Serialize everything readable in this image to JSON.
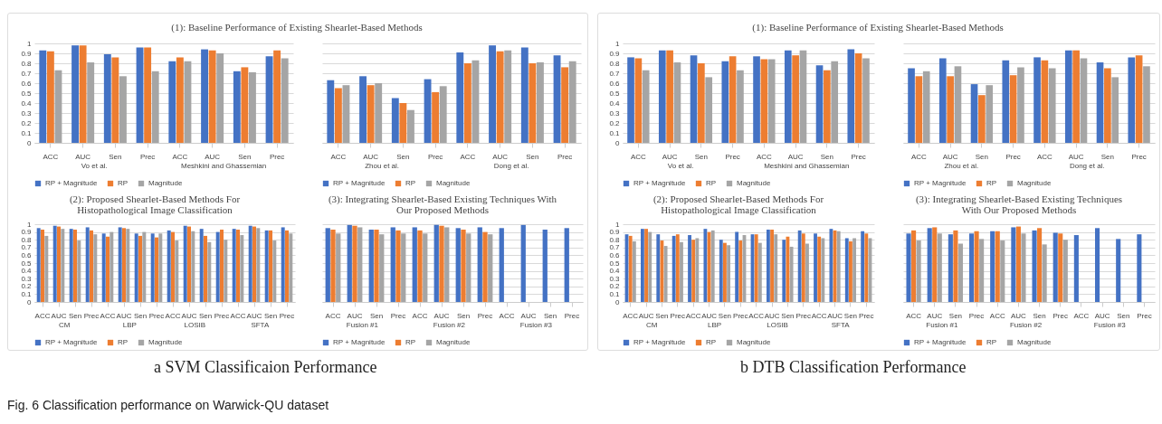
{
  "chart_data": [
    {
      "type": "bar",
      "title": "(1): Baseline Performance of Existing Shearlet-Based Methods",
      "categories": [
        "ACC",
        "AUC",
        "Sen",
        "Prec",
        "ACC",
        "AUC",
        "Sen",
        "Prec"
      ],
      "annotations": [
        "Vo et al.",
        "Meshkini and Ghassemian"
      ],
      "ylim": [
        0,
        1
      ],
      "yticks": [
        0,
        0.1,
        0.2,
        0.3,
        0.4,
        0.5,
        0.6,
        0.7,
        0.8,
        0.9,
        1
      ],
      "grid": "y",
      "legend": "bottom",
      "series": [
        {
          "name": "RP + Magnitude",
          "color": "#4472c4",
          "values": [
            0.93,
            0.98,
            0.89,
            0.96,
            0.82,
            0.94,
            0.72,
            0.87
          ]
        },
        {
          "name": "RP",
          "color": "#ed7d31",
          "values": [
            0.92,
            0.98,
            0.86,
            0.96,
            0.86,
            0.93,
            0.76,
            0.93
          ]
        },
        {
          "name": "Magnitude",
          "color": "#a5a5a5",
          "values": [
            0.73,
            0.81,
            0.67,
            0.72,
            0.82,
            0.9,
            0.71,
            0.85
          ]
        }
      ]
    },
    {
      "type": "bar",
      "categories": [
        "ACC",
        "AUC",
        "Sen",
        "Prec",
        "ACC",
        "AUC",
        "Sen",
        "Prec"
      ],
      "annotations": [
        "Zhou et al.",
        "Dong et al."
      ],
      "ylim": [
        0,
        1
      ],
      "yticks": [
        0,
        0.1,
        0.2,
        0.3,
        0.4,
        0.5,
        0.6,
        0.7,
        0.8,
        0.9,
        1
      ],
      "grid": "y",
      "legend": "bottom",
      "tick_labels": "x",
      "series": [
        {
          "name": "RP + Magnitude",
          "color": "#4472c4",
          "values": [
            0.63,
            0.67,
            0.45,
            0.64,
            0.91,
            0.98,
            0.96,
            0.88
          ]
        },
        {
          "name": "RP",
          "color": "#ed7d31",
          "values": [
            0.55,
            0.58,
            0.4,
            0.51,
            0.8,
            0.92,
            0.8,
            0.76
          ]
        },
        {
          "name": "Magnitude",
          "color": "#a5a5a5",
          "values": [
            0.58,
            0.6,
            0.33,
            0.57,
            0.83,
            0.93,
            0.81,
            0.82
          ]
        }
      ]
    },
    {
      "type": "bar",
      "title": "(2): Proposed Shearlet-Based Methods For Histopathological Image Classification",
      "categories": [
        "ACC",
        "AUC",
        "Sen",
        "Prec",
        "ACC",
        "AUC",
        "Sen",
        "Prec",
        "ACC",
        "AUC",
        "Sen",
        "Prec",
        "ACC",
        "AUC",
        "Sen",
        "Prec"
      ],
      "annotations": [
        "CM",
        "LBP",
        "LOSIB",
        "SFTA"
      ],
      "ylim": [
        0,
        1
      ],
      "yticks": [
        0,
        0.1,
        0.2,
        0.3,
        0.4,
        0.5,
        0.6,
        0.7,
        0.8,
        0.9,
        1
      ],
      "grid": "y",
      "legend": "bottom",
      "series": [
        {
          "name": "RP + Magnitude",
          "color": "#4472c4",
          "values": [
            0.95,
            0.98,
            0.94,
            0.96,
            0.88,
            0.96,
            0.88,
            0.88,
            0.92,
            0.98,
            0.94,
            0.9,
            0.94,
            0.98,
            0.92,
            0.96
          ]
        },
        {
          "name": "RP",
          "color": "#ed7d31",
          "values": [
            0.93,
            0.97,
            0.93,
            0.92,
            0.84,
            0.95,
            0.85,
            0.83,
            0.9,
            0.97,
            0.85,
            0.93,
            0.93,
            0.97,
            0.92,
            0.92
          ]
        },
        {
          "name": "Magnitude",
          "color": "#a5a5a5",
          "values": [
            0.85,
            0.94,
            0.79,
            0.87,
            0.9,
            0.94,
            0.9,
            0.88,
            0.79,
            0.91,
            0.77,
            0.8,
            0.86,
            0.95,
            0.79,
            0.88
          ]
        }
      ]
    },
    {
      "type": "bar",
      "title": "(3): Integrating Shearlet-Based Existing Techniques With Our Proposed Methods",
      "categories": [
        "ACC",
        "AUC",
        "Sen",
        "Prec",
        "ACC",
        "AUC",
        "Sen",
        "Prec",
        "ACC",
        "AUC",
        "Sen",
        "Prec"
      ],
      "annotations": [
        "Fusion #1",
        "Fusion #2",
        "Fusion #3"
      ],
      "ylim": [
        0,
        1
      ],
      "yticks": [
        0,
        0.1,
        0.2,
        0.3,
        0.4,
        0.5,
        0.6,
        0.7,
        0.8,
        0.9,
        1
      ],
      "grid": "y",
      "legend": "bottom",
      "tick_labels": "x",
      "series": [
        {
          "name": "RP + Magnitude",
          "color": "#4472c4",
          "values": [
            0.95,
            0.99,
            0.93,
            0.96,
            0.96,
            0.99,
            0.95,
            0.96,
            0.95,
            0.99,
            0.93,
            0.95
          ]
        },
        {
          "name": "RP",
          "color": "#ed7d31",
          "values": [
            0.93,
            0.98,
            0.93,
            0.92,
            0.92,
            0.98,
            0.93,
            0.9,
            null,
            null,
            null,
            null
          ]
        },
        {
          "name": "Magnitude",
          "color": "#a5a5a5",
          "values": [
            0.88,
            0.96,
            0.87,
            0.88,
            0.88,
            0.96,
            0.88,
            0.87,
            null,
            null,
            null,
            null
          ]
        }
      ]
    },
    {
      "type": "bar",
      "title": "(1): Baseline Performance of Existing Shearlet-Based Methods",
      "categories": [
        "ACC",
        "AUC",
        "Sen",
        "Prec",
        "ACC",
        "AUC",
        "Sen",
        "Prec"
      ],
      "annotations": [
        "Vo et al.",
        "Meshkini and Ghassemian"
      ],
      "ylim": [
        0,
        1
      ],
      "yticks": [
        0,
        0.1,
        0.2,
        0.3,
        0.4,
        0.5,
        0.6,
        0.7,
        0.8,
        0.9,
        1
      ],
      "grid": "y",
      "legend": "bottom",
      "series": [
        {
          "name": "RP + Magnitude",
          "color": "#4472c4",
          "values": [
            0.86,
            0.93,
            0.88,
            0.82,
            0.87,
            0.93,
            0.78,
            0.94
          ]
        },
        {
          "name": "RP",
          "color": "#ed7d31",
          "values": [
            0.85,
            0.93,
            0.8,
            0.87,
            0.84,
            0.88,
            0.73,
            0.9
          ]
        },
        {
          "name": "Magnitude",
          "color": "#a5a5a5",
          "values": [
            0.73,
            0.81,
            0.66,
            0.73,
            0.84,
            0.93,
            0.82,
            0.85
          ]
        }
      ]
    },
    {
      "type": "bar",
      "categories": [
        "ACC",
        "AUC",
        "Sen",
        "Prec",
        "ACC",
        "AUC",
        "Sen",
        "Prec"
      ],
      "annotations": [
        "Zhou et al.",
        "Dong et al."
      ],
      "ylim": [
        0,
        1
      ],
      "yticks": [
        0,
        0.1,
        0.2,
        0.3,
        0.4,
        0.5,
        0.6,
        0.7,
        0.8,
        0.9,
        1
      ],
      "grid": "y",
      "legend": "bottom",
      "tick_labels": "x",
      "series": [
        {
          "name": "RP + Magnitude",
          "color": "#4472c4",
          "values": [
            0.75,
            0.85,
            0.59,
            0.83,
            0.86,
            0.93,
            0.81,
            0.86
          ]
        },
        {
          "name": "RP",
          "color": "#ed7d31",
          "values": [
            0.67,
            0.67,
            0.48,
            0.68,
            0.83,
            0.93,
            0.75,
            0.88
          ]
        },
        {
          "name": "Magnitude",
          "color": "#a5a5a5",
          "values": [
            0.72,
            0.77,
            0.58,
            0.76,
            0.75,
            0.85,
            0.66,
            0.77
          ]
        }
      ]
    },
    {
      "type": "bar",
      "title": "(2): Proposed Shearlet-Based Methods For Histopathological Image Classification",
      "categories": [
        "ACC",
        "AUC",
        "Sen",
        "Prec",
        "ACC",
        "AUC",
        "Sen",
        "Prec",
        "ACC",
        "AUC",
        "Sen",
        "Prec",
        "ACC",
        "AUC",
        "Sen",
        "Prec"
      ],
      "annotations": [
        "CM",
        "LBP",
        "LOSIB",
        "SFTA"
      ],
      "ylim": [
        0,
        1
      ],
      "yticks": [
        0,
        0.1,
        0.2,
        0.3,
        0.4,
        0.5,
        0.6,
        0.7,
        0.8,
        0.9,
        1
      ],
      "grid": "y",
      "legend": "bottom",
      "series": [
        {
          "name": "RP + Magnitude",
          "color": "#4472c4",
          "values": [
            0.87,
            0.94,
            0.87,
            0.85,
            0.86,
            0.94,
            0.8,
            0.9,
            0.87,
            0.93,
            0.8,
            0.92,
            0.88,
            0.94,
            0.82,
            0.91
          ]
        },
        {
          "name": "RP",
          "color": "#ed7d31",
          "values": [
            0.85,
            0.94,
            0.79,
            0.87,
            0.8,
            0.9,
            0.76,
            0.79,
            0.87,
            0.93,
            0.84,
            0.88,
            0.84,
            0.92,
            0.78,
            0.88
          ]
        },
        {
          "name": "Magnitude",
          "color": "#a5a5a5",
          "values": [
            0.78,
            0.9,
            0.72,
            0.77,
            0.82,
            0.92,
            0.73,
            0.86,
            0.76,
            0.87,
            0.71,
            0.75,
            0.82,
            0.91,
            0.82,
            0.82
          ]
        }
      ]
    },
    {
      "type": "bar",
      "title": "(3): Integrating Shearlet-Based Existing Techniques With Our Proposed Methods",
      "categories": [
        "ACC",
        "AUC",
        "Sen",
        "Prec",
        "ACC",
        "AUC",
        "Sen",
        "Prec",
        "ACC",
        "AUC",
        "Sen",
        "Prec"
      ],
      "annotations": [
        "Fusion #1",
        "Fusion #2",
        "Fusion #3"
      ],
      "ylim": [
        0,
        1
      ],
      "yticks": [
        0,
        0.1,
        0.2,
        0.3,
        0.4,
        0.5,
        0.6,
        0.7,
        0.8,
        0.9,
        1
      ],
      "grid": "y",
      "legend": "bottom",
      "tick_labels": "x",
      "series": [
        {
          "name": "RP + Magnitude",
          "color": "#4472c4",
          "values": [
            0.88,
            0.95,
            0.87,
            0.88,
            0.91,
            0.96,
            0.92,
            0.89,
            0.86,
            0.95,
            0.81,
            0.87
          ]
        },
        {
          "name": "RP",
          "color": "#ed7d31",
          "values": [
            0.92,
            0.96,
            0.92,
            0.91,
            0.91,
            0.97,
            0.95,
            0.88,
            null,
            null,
            null,
            null
          ]
        },
        {
          "name": "Magnitude",
          "color": "#a5a5a5",
          "values": [
            0.79,
            0.88,
            0.75,
            0.81,
            0.79,
            0.88,
            0.74,
            0.8,
            null,
            null,
            null,
            null
          ]
        }
      ]
    },
    {
      "type": "other",
      "annotations": [
        "a SVM Classificaion Performance",
        "b DTB Classification Performance",
        "Fig. 6 Classification performance on Warwick-QU dataset"
      ]
    }
  ]
}
